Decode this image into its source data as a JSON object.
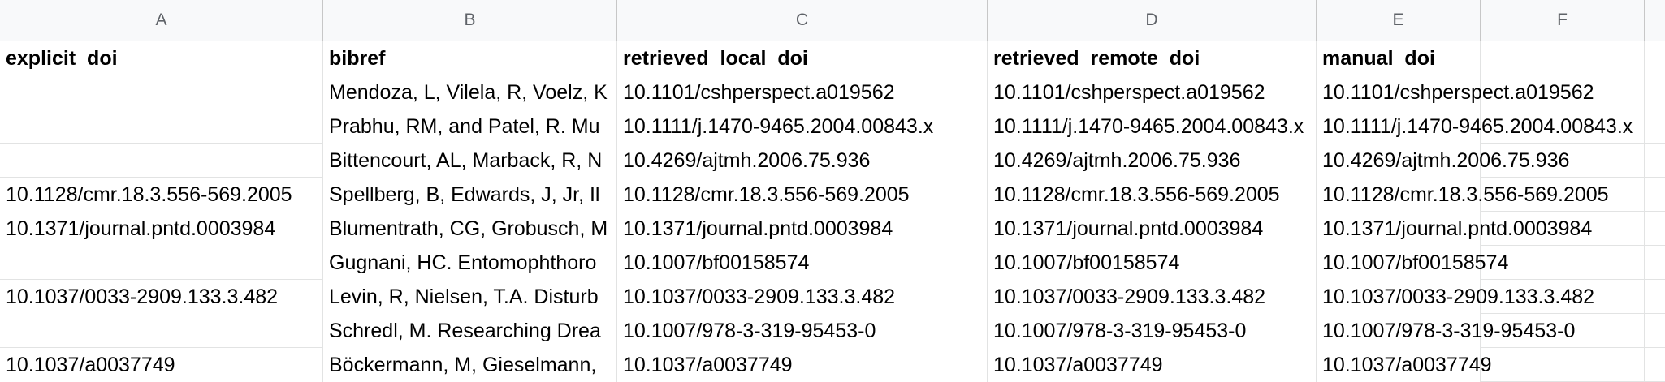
{
  "columns": [
    "A",
    "B",
    "C",
    "D",
    "E",
    "F"
  ],
  "header": [
    "explicit_doi",
    "bibref",
    "retrieved_local_doi",
    "retrieved_remote_doi",
    "manual_doi",
    ""
  ],
  "rows": [
    [
      "",
      "Mendoza, L, Vilela, R, Voelz, K",
      "10.1101/cshperspect.a019562",
      "10.1101/cshperspect.a019562",
      "10.1101/cshperspect.a019562",
      ""
    ],
    [
      "",
      "Prabhu, RM, and Patel, R. Mu",
      "10.1111/j.1470-9465.2004.00843.x",
      "10.1111/j.1470-9465.2004.00843.x",
      "10.1111/j.1470-9465.2004.00843.x",
      ""
    ],
    [
      "",
      "Bittencourt, AL, Marback, R, N",
      "10.4269/ajtmh.2006.75.936",
      "10.4269/ajtmh.2006.75.936",
      "10.4269/ajtmh.2006.75.936",
      ""
    ],
    [
      "10.1128/cmr.18.3.556-569.2005",
      "Spellberg, B, Edwards, J, Jr, Il",
      "10.1128/cmr.18.3.556-569.2005",
      "10.1128/cmr.18.3.556-569.2005",
      "10.1128/cmr.18.3.556-569.2005",
      ""
    ],
    [
      "10.1371/journal.pntd.0003984",
      "Blumentrath, CG, Grobusch, M",
      "10.1371/journal.pntd.0003984",
      "10.1371/journal.pntd.0003984",
      "10.1371/journal.pntd.0003984",
      ""
    ],
    [
      "",
      "Gugnani, HC. Entomophthoro",
      "10.1007/bf00158574",
      "10.1007/bf00158574",
      "10.1007/bf00158574",
      ""
    ],
    [
      "10.1037/0033-2909.133.3.482",
      "Levin, R, Nielsen, T.A. Disturb",
      "10.1037/0033-2909.133.3.482",
      "10.1037/0033-2909.133.3.482",
      "10.1037/0033-2909.133.3.482",
      ""
    ],
    [
      "",
      "Schredl, M. Researching Drea",
      "10.1007/978-3-319-95453-0",
      "10.1007/978-3-319-95453-0",
      "10.1007/978-3-319-95453-0",
      ""
    ],
    [
      "10.1037/a0037749",
      "Böckermann, M, Gieselmann,",
      "10.1037/a0037749",
      "10.1037/a0037749",
      "10.1037/a0037749",
      ""
    ]
  ]
}
